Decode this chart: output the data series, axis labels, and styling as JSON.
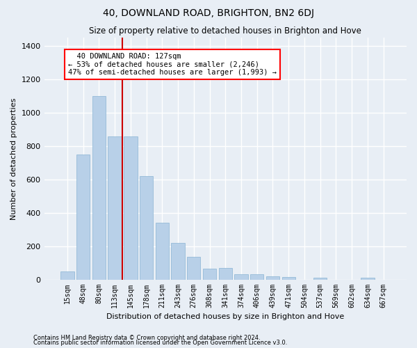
{
  "title": "40, DOWNLAND ROAD, BRIGHTON, BN2 6DJ",
  "subtitle": "Size of property relative to detached houses in Brighton and Hove",
  "xlabel": "Distribution of detached houses by size in Brighton and Hove",
  "ylabel": "Number of detached properties",
  "footer1": "Contains HM Land Registry data © Crown copyright and database right 2024.",
  "footer2": "Contains public sector information licensed under the Open Government Licence v3.0.",
  "categories": [
    "15sqm",
    "48sqm",
    "80sqm",
    "113sqm",
    "145sqm",
    "178sqm",
    "211sqm",
    "243sqm",
    "276sqm",
    "308sqm",
    "341sqm",
    "374sqm",
    "406sqm",
    "439sqm",
    "471sqm",
    "504sqm",
    "537sqm",
    "569sqm",
    "602sqm",
    "634sqm",
    "667sqm"
  ],
  "values": [
    50,
    750,
    1100,
    860,
    860,
    620,
    340,
    220,
    135,
    65,
    70,
    30,
    30,
    20,
    15,
    0,
    10,
    0,
    0,
    10,
    0
  ],
  "bar_color": "#b8d0e8",
  "bar_edgecolor": "#8ab4d4",
  "vline_x": 3.5,
  "vline_color": "#cc0000",
  "annotation_line1": "  40 DOWNLAND ROAD: 127sqm",
  "annotation_line2": "← 53% of detached houses are smaller (2,246)",
  "annotation_line3": "47% of semi-detached houses are larger (1,993) →",
  "ylim_max": 1450,
  "ytick_interval": 200,
  "background_color": "#e8eef5",
  "fig_background_color": "#e8eef5",
  "grid_color": "#ffffff",
  "title_fontsize": 10,
  "subtitle_fontsize": 8.5,
  "xlabel_fontsize": 8,
  "ylabel_fontsize": 8,
  "tick_fontsize": 7,
  "footer_fontsize": 6,
  "annotation_fontsize": 7.5
}
